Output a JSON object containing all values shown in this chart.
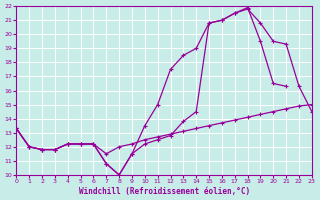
{
  "xlabel": "Windchill (Refroidissement éolien,°C)",
  "bg_color": "#c8ece8",
  "grid_color": "#ffffff",
  "line_color": "#990099",
  "xlim": [
    0,
    23
  ],
  "ylim": [
    10,
    22
  ],
  "xticks": [
    0,
    1,
    2,
    3,
    4,
    5,
    6,
    7,
    8,
    9,
    10,
    11,
    12,
    13,
    14,
    15,
    16,
    17,
    18,
    19,
    20,
    21,
    22,
    23
  ],
  "yticks": [
    10,
    11,
    12,
    13,
    14,
    15,
    16,
    17,
    18,
    19,
    20,
    21,
    22
  ],
  "line1_x": [
    0,
    1,
    2,
    3,
    4,
    5,
    6,
    7,
    8,
    9,
    10,
    11,
    12,
    13,
    14,
    15,
    16,
    17,
    18,
    19,
    20,
    21,
    22,
    23
  ],
  "line1_y": [
    13.3,
    12.0,
    11.8,
    11.8,
    12.2,
    12.2,
    12.2,
    11.5,
    12.0,
    12.2,
    12.5,
    12.7,
    12.9,
    13.1,
    13.3,
    13.5,
    13.7,
    13.9,
    14.1,
    14.3,
    14.5,
    14.7,
    14.9,
    15.0
  ],
  "line2_x": [
    0,
    1,
    2,
    3,
    4,
    5,
    6,
    7,
    8,
    9,
    10,
    11,
    12,
    13,
    14,
    15,
    16,
    17,
    18,
    19,
    20,
    21,
    22,
    23
  ],
  "line2_y": [
    13.3,
    12.0,
    11.8,
    11.8,
    12.2,
    12.2,
    12.2,
    10.8,
    10.0,
    11.5,
    13.5,
    15.0,
    17.5,
    18.5,
    19.0,
    20.8,
    21.0,
    21.5,
    21.8,
    20.8,
    19.5,
    19.3,
    16.3,
    14.5
  ],
  "line3_x": [
    0,
    1,
    2,
    3,
    4,
    5,
    6,
    7,
    8,
    9,
    10,
    11,
    12,
    13,
    14,
    15,
    16,
    17,
    18,
    19,
    20,
    21
  ],
  "line3_y": [
    13.3,
    12.0,
    11.8,
    11.8,
    12.2,
    12.2,
    12.2,
    10.8,
    10.0,
    11.5,
    12.2,
    12.5,
    12.8,
    13.8,
    14.5,
    20.8,
    21.0,
    21.5,
    21.9,
    19.5,
    16.5,
    16.3
  ]
}
